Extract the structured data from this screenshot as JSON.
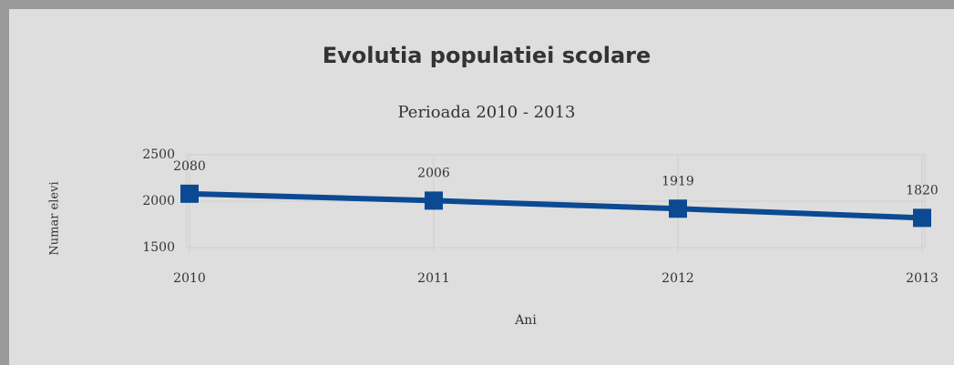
{
  "chart_data": {
    "type": "line",
    "title": "Evolutia populatiei scolare",
    "subtitle": "Perioada 2010 - 2013",
    "x_label": "Ani",
    "y_label": "Numar elevi",
    "categories": [
      "2010",
      "2011",
      "2012",
      "2013"
    ],
    "series": [
      {
        "name": "Numar elevi",
        "color": "#0b4a92",
        "values": [
          2080,
          2006,
          1919,
          1820
        ]
      }
    ],
    "ylim": [
      1500,
      2500
    ],
    "yticks": [
      1500,
      2000,
      2500
    ],
    "grid": true
  }
}
